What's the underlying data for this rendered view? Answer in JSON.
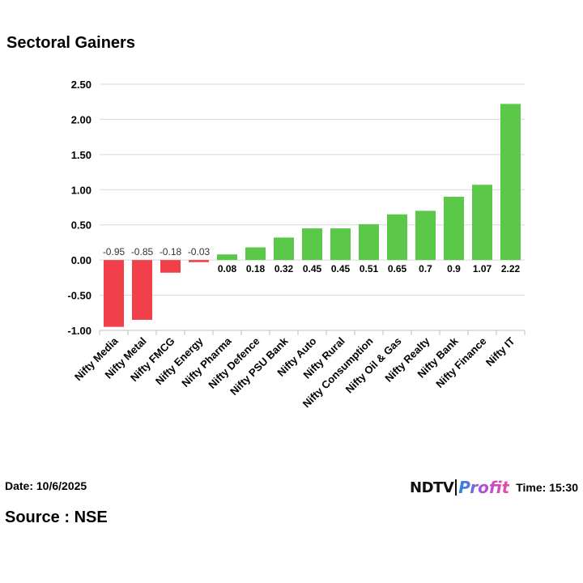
{
  "title": "Sectoral Gainers",
  "footer": {
    "date": "Date: 10/6/2025",
    "time": "Time: 15:30",
    "source": "Source : NSE",
    "logo_left": "NDTV",
    "logo_right": "Profit"
  },
  "colors": {
    "positive": "#5cc84a",
    "negative": "#f2404b",
    "grid": "#d9d9d9",
    "axis": "#bfbfbf"
  },
  "chart_data": {
    "type": "bar",
    "title": "Sectoral Gainers",
    "xlabel": "",
    "ylabel": "",
    "ylim": [
      -1.0,
      2.5
    ],
    "yticks": [
      2.5,
      2.0,
      1.5,
      1.0,
      0.5,
      0.0,
      -0.5,
      -1.0
    ],
    "ytick_labels": [
      "2.50",
      "2.00",
      "1.50",
      "1.00",
      "0.50",
      "0.00",
      "-0.50",
      "-1.00"
    ],
    "grid": true,
    "legend": "none",
    "categories": [
      "Nifty Media",
      "Nifty Metal",
      "Nifty FMCG",
      "Nifty Energy",
      "Nifty Pharma",
      "Nifty Defence",
      "Nifty PSU Bank",
      "Nifty Auto",
      "Nifty Rural",
      "Nifty Consumption",
      "Nifty Oil & Gas",
      "Nifty Realty",
      "Nifty Bank",
      "Nifty Finance",
      "Nifty IT"
    ],
    "values": [
      -0.95,
      -0.85,
      -0.18,
      -0.03,
      0.08,
      0.18,
      0.32,
      0.45,
      0.45,
      0.51,
      0.65,
      0.7,
      0.9,
      1.07,
      2.22
    ],
    "data_labels": [
      "-0.95",
      "-0.85",
      "-0.18",
      "-0.03",
      "0.08",
      "0.18",
      "0.32",
      "0.45",
      "0.45",
      "0.51",
      "0.65",
      "0.7",
      "0.9",
      "1.07",
      "2.22"
    ]
  }
}
